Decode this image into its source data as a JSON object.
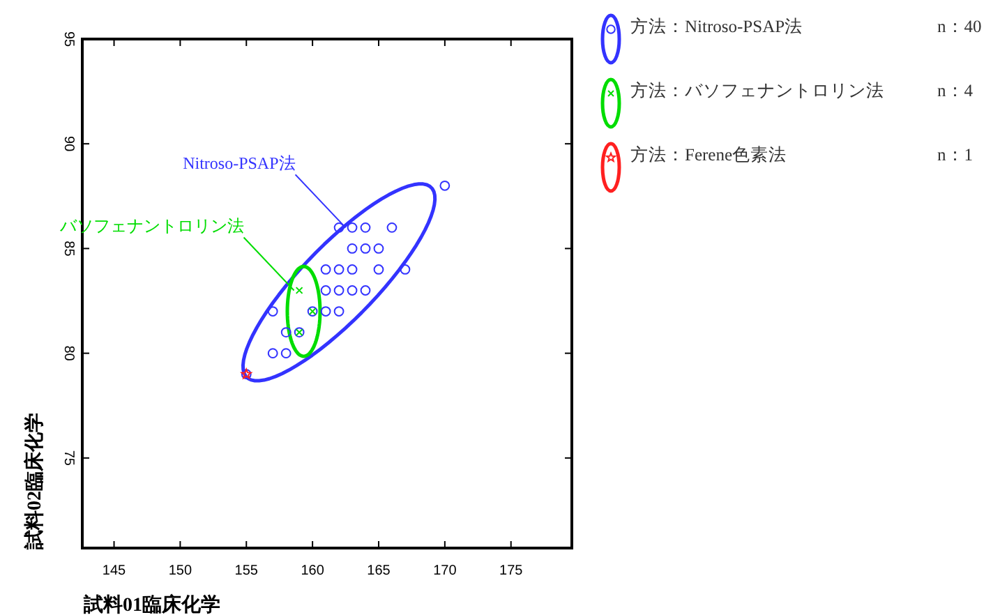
{
  "chart_data": {
    "type": "scatter",
    "xlabel": "試料01臨床化学",
    "ylabel": "試料02臨床化学",
    "xlim": [
      142.6,
      179.6
    ],
    "ylim": [
      70.7,
      95
    ],
    "xticks": [
      145,
      150,
      155,
      160,
      165,
      170,
      175
    ],
    "yticks": [
      75,
      80,
      85,
      90,
      95
    ],
    "grid": false,
    "legend": "right",
    "series": [
      {
        "name": "方法：Nitroso-PSAP法",
        "type": "scatter",
        "marker": "circle",
        "color": "#3333ff",
        "x": [
          170,
          162,
          163,
          164,
          166,
          163,
          164,
          165,
          161,
          162,
          163,
          165,
          167,
          161,
          162,
          163,
          164,
          157,
          160,
          161,
          162,
          158,
          159,
          157,
          158,
          155
        ],
        "values": [
          88,
          86,
          86,
          86,
          86,
          85,
          85,
          85,
          84,
          84,
          84,
          84,
          84,
          83,
          83,
          83,
          83,
          82,
          82,
          82,
          82,
          81,
          81,
          80,
          80,
          79
        ]
      },
      {
        "name": "方法：バソフェナントロリン法",
        "type": "scatter",
        "marker": "cross",
        "color": "#00dd00",
        "x": [
          159,
          160,
          159
        ],
        "values": [
          83,
          82,
          81
        ]
      },
      {
        "name": "方法：Ferene色素法",
        "type": "scatter",
        "marker": "star",
        "color": "#ff2020",
        "x": [
          155
        ],
        "values": [
          79
        ]
      }
    ],
    "annotations": [
      {
        "text": "Nitroso-PSAP法",
        "x": 162.5,
        "y": 86
      },
      {
        "text": "バソフェナントロリン法",
        "x": 158.6,
        "y": 83
      },
      "n：40",
      "n：4",
      "n：1"
    ]
  }
}
